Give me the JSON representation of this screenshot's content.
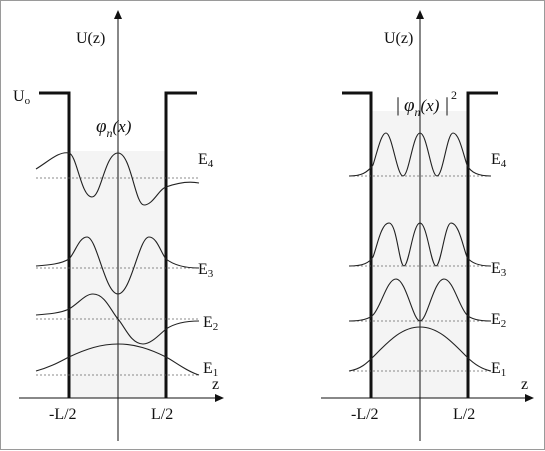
{
  "figure": {
    "left_panel": {
      "axis_label": "U(z)",
      "potential_label": "U",
      "potential_label_sub": "o",
      "wavefunction_label": "φn(x)",
      "wavefunction_parts": {
        "symbol": "φ",
        "sub": "n",
        "arg": "(x)"
      },
      "z_label": "z",
      "left_edge_label": "-L/2",
      "right_edge_label": "L/2",
      "levels": [
        {
          "label": "E",
          "sub": "1",
          "n": 1
        },
        {
          "label": "E",
          "sub": "2",
          "n": 2
        },
        {
          "label": "E",
          "sub": "3",
          "n": 3
        },
        {
          "label": "E",
          "sub": "4",
          "n": 4
        }
      ]
    },
    "right_panel": {
      "axis_label": "U(z)",
      "density_label": "|φn(x)|2",
      "density_parts": {
        "symbol": "φ",
        "sub": "n",
        "arg": "(x)",
        "power": "2"
      },
      "z_label": "z",
      "left_edge_label": "-L/2",
      "right_edge_label": "L/2",
      "levels": [
        {
          "label": "E",
          "sub": "1",
          "n": 1
        },
        {
          "label": "E",
          "sub": "2",
          "n": 2
        },
        {
          "label": "E",
          "sub": "3",
          "n": 3
        },
        {
          "label": "E",
          "sub": "4",
          "n": 4
        }
      ]
    }
  }
}
